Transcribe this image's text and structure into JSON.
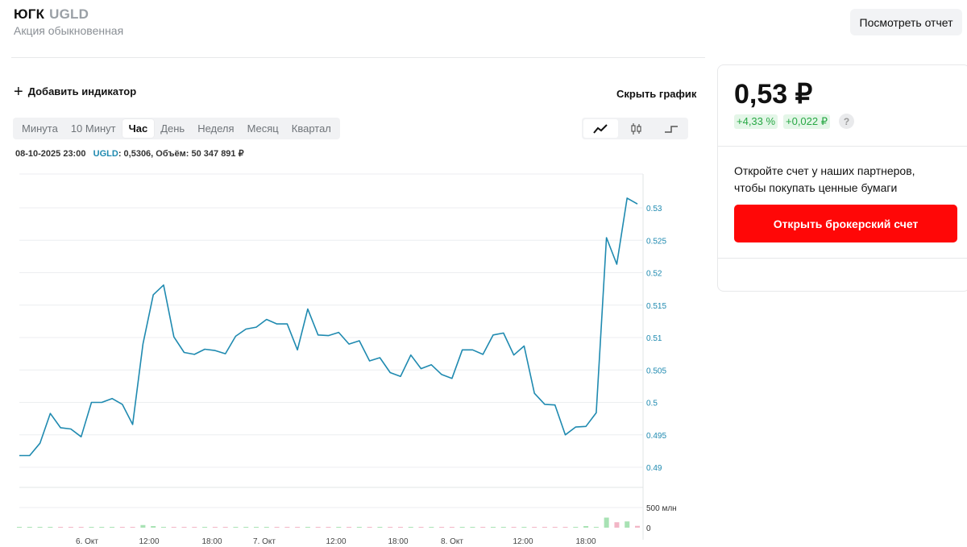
{
  "header": {
    "name": "ЮГК",
    "ticker": "UGLD",
    "subtitle": "Акция обыкновенная",
    "report_button": "Посмотреть отчет"
  },
  "toolbar": {
    "add_indicator": "Добавить индикатор",
    "hide_chart": "Скрыть график",
    "periods": [
      "Минута",
      "10 Минут",
      "Час",
      "День",
      "Неделя",
      "Месяц",
      "Квартал"
    ],
    "active_period": "Час",
    "chart_types": [
      "line-chart-icon",
      "candlestick-icon",
      "step-chart-icon"
    ]
  },
  "info_bar": {
    "datetime": "08-10-2025 23:00",
    "ticker": "UGLD",
    "details": ": 0,5306, Объём: 50 347 891 ₽"
  },
  "quote": {
    "price": "0,53 ₽",
    "change_percent": "+4,33 %",
    "change_abs": "+0,022 ₽",
    "help": "?"
  },
  "promo": {
    "text": "Откройте счет у наших партнеров, чтобы покупать ценные бумаги",
    "button": "Открыть брокерский счет"
  },
  "colors": {
    "line": "#1f8ab0",
    "up": "#a8e2b4",
    "down": "#f2b6c6",
    "accent_red": "#ff0707",
    "positive": "#27a844"
  },
  "chart_data": {
    "type": "line",
    "price_ticks": [
      "0.53",
      "0.525",
      "0.52",
      "0.515",
      "0.51",
      "0.505",
      "0.5",
      "0.495",
      "0.49"
    ],
    "ylim": [
      0.49,
      0.53
    ],
    "volume_ticks": [
      "500 млн",
      "0"
    ],
    "x_labels": [
      "6. Окт",
      "12:00",
      "18:00",
      "7. Окт",
      "12:00",
      "18:00",
      "8. Окт",
      "12:00",
      "18:00"
    ],
    "price": [
      0.4918,
      0.4918,
      0.4937,
      0.4983,
      0.4961,
      0.4959,
      0.4947,
      0.5,
      0.5,
      0.5006,
      0.4997,
      0.4966,
      0.509,
      0.5166,
      0.5181,
      0.5101,
      0.5077,
      0.5074,
      0.5082,
      0.508,
      0.5075,
      0.5102,
      0.5113,
      0.5116,
      0.5128,
      0.5121,
      0.5121,
      0.5081,
      0.5144,
      0.5104,
      0.5103,
      0.5108,
      0.509,
      0.5095,
      0.5064,
      0.5069,
      0.5046,
      0.504,
      0.5073,
      0.5052,
      0.5058,
      0.5043,
      0.5037,
      0.5081,
      0.5081,
      0.5074,
      0.5104,
      0.5107,
      0.5073,
      0.5087,
      0.5014,
      0.4997,
      0.4996,
      0.495,
      0.4962,
      0.4963,
      0.4984,
      0.5254,
      0.5213,
      0.5315,
      0.5306
    ],
    "volume": [
      0.5,
      0.5,
      0.5,
      0.5,
      0.5,
      0.5,
      0.5,
      0.5,
      0.5,
      0.5,
      0.5,
      16,
      65,
      40,
      10,
      8,
      10,
      20,
      12,
      6,
      5,
      4,
      4,
      5,
      5,
      5,
      4,
      8,
      12,
      8,
      5,
      10,
      12,
      10,
      8,
      6,
      6,
      6,
      5,
      5,
      5,
      5,
      5,
      5,
      5,
      5,
      10,
      12,
      10,
      12,
      8,
      20,
      16,
      8,
      18,
      40,
      12,
      250,
      135,
      155,
      45
    ],
    "up": [
      1,
      1,
      1,
      1,
      0,
      0,
      0,
      1,
      1,
      1,
      0,
      0,
      1,
      1,
      1,
      0,
      0,
      0,
      1,
      0,
      0,
      1,
      1,
      1,
      1,
      0,
      0,
      0,
      1,
      0,
      0,
      1,
      0,
      1,
      0,
      1,
      0,
      0,
      1,
      0,
      1,
      0,
      0,
      1,
      1,
      0,
      1,
      1,
      0,
      1,
      0,
      0,
      0,
      0,
      1,
      1,
      1,
      1,
      0,
      1,
      0
    ],
    "vol_max": 560
  }
}
